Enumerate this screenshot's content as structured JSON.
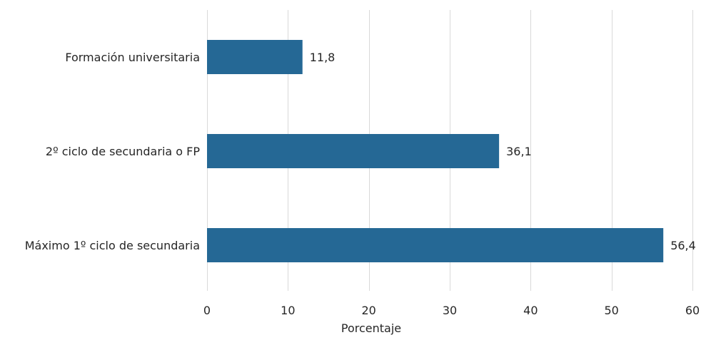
{
  "chart_data": {
    "type": "bar",
    "orientation": "horizontal",
    "categories": [
      "Formación universitaria",
      "2º ciclo de secundaria o FP",
      "Máximo 1º ciclo de secundaria"
    ],
    "values": [
      11.8,
      36.1,
      56.4
    ],
    "value_labels": [
      "11,8",
      "36,1",
      "56,4"
    ],
    "title": "",
    "xlabel": "Porcentaje",
    "ylabel": "",
    "xlim": [
      0,
      60
    ],
    "x_ticks": [
      0,
      10,
      20,
      30,
      40,
      50,
      60
    ],
    "x_tick_labels": [
      "0",
      "10",
      "20",
      "30",
      "40",
      "50",
      "60"
    ],
    "grid": "vertical",
    "legend": "none",
    "colors": {
      "bar": "#256895",
      "grid": "#d9d9d9",
      "text": "#262626"
    }
  }
}
